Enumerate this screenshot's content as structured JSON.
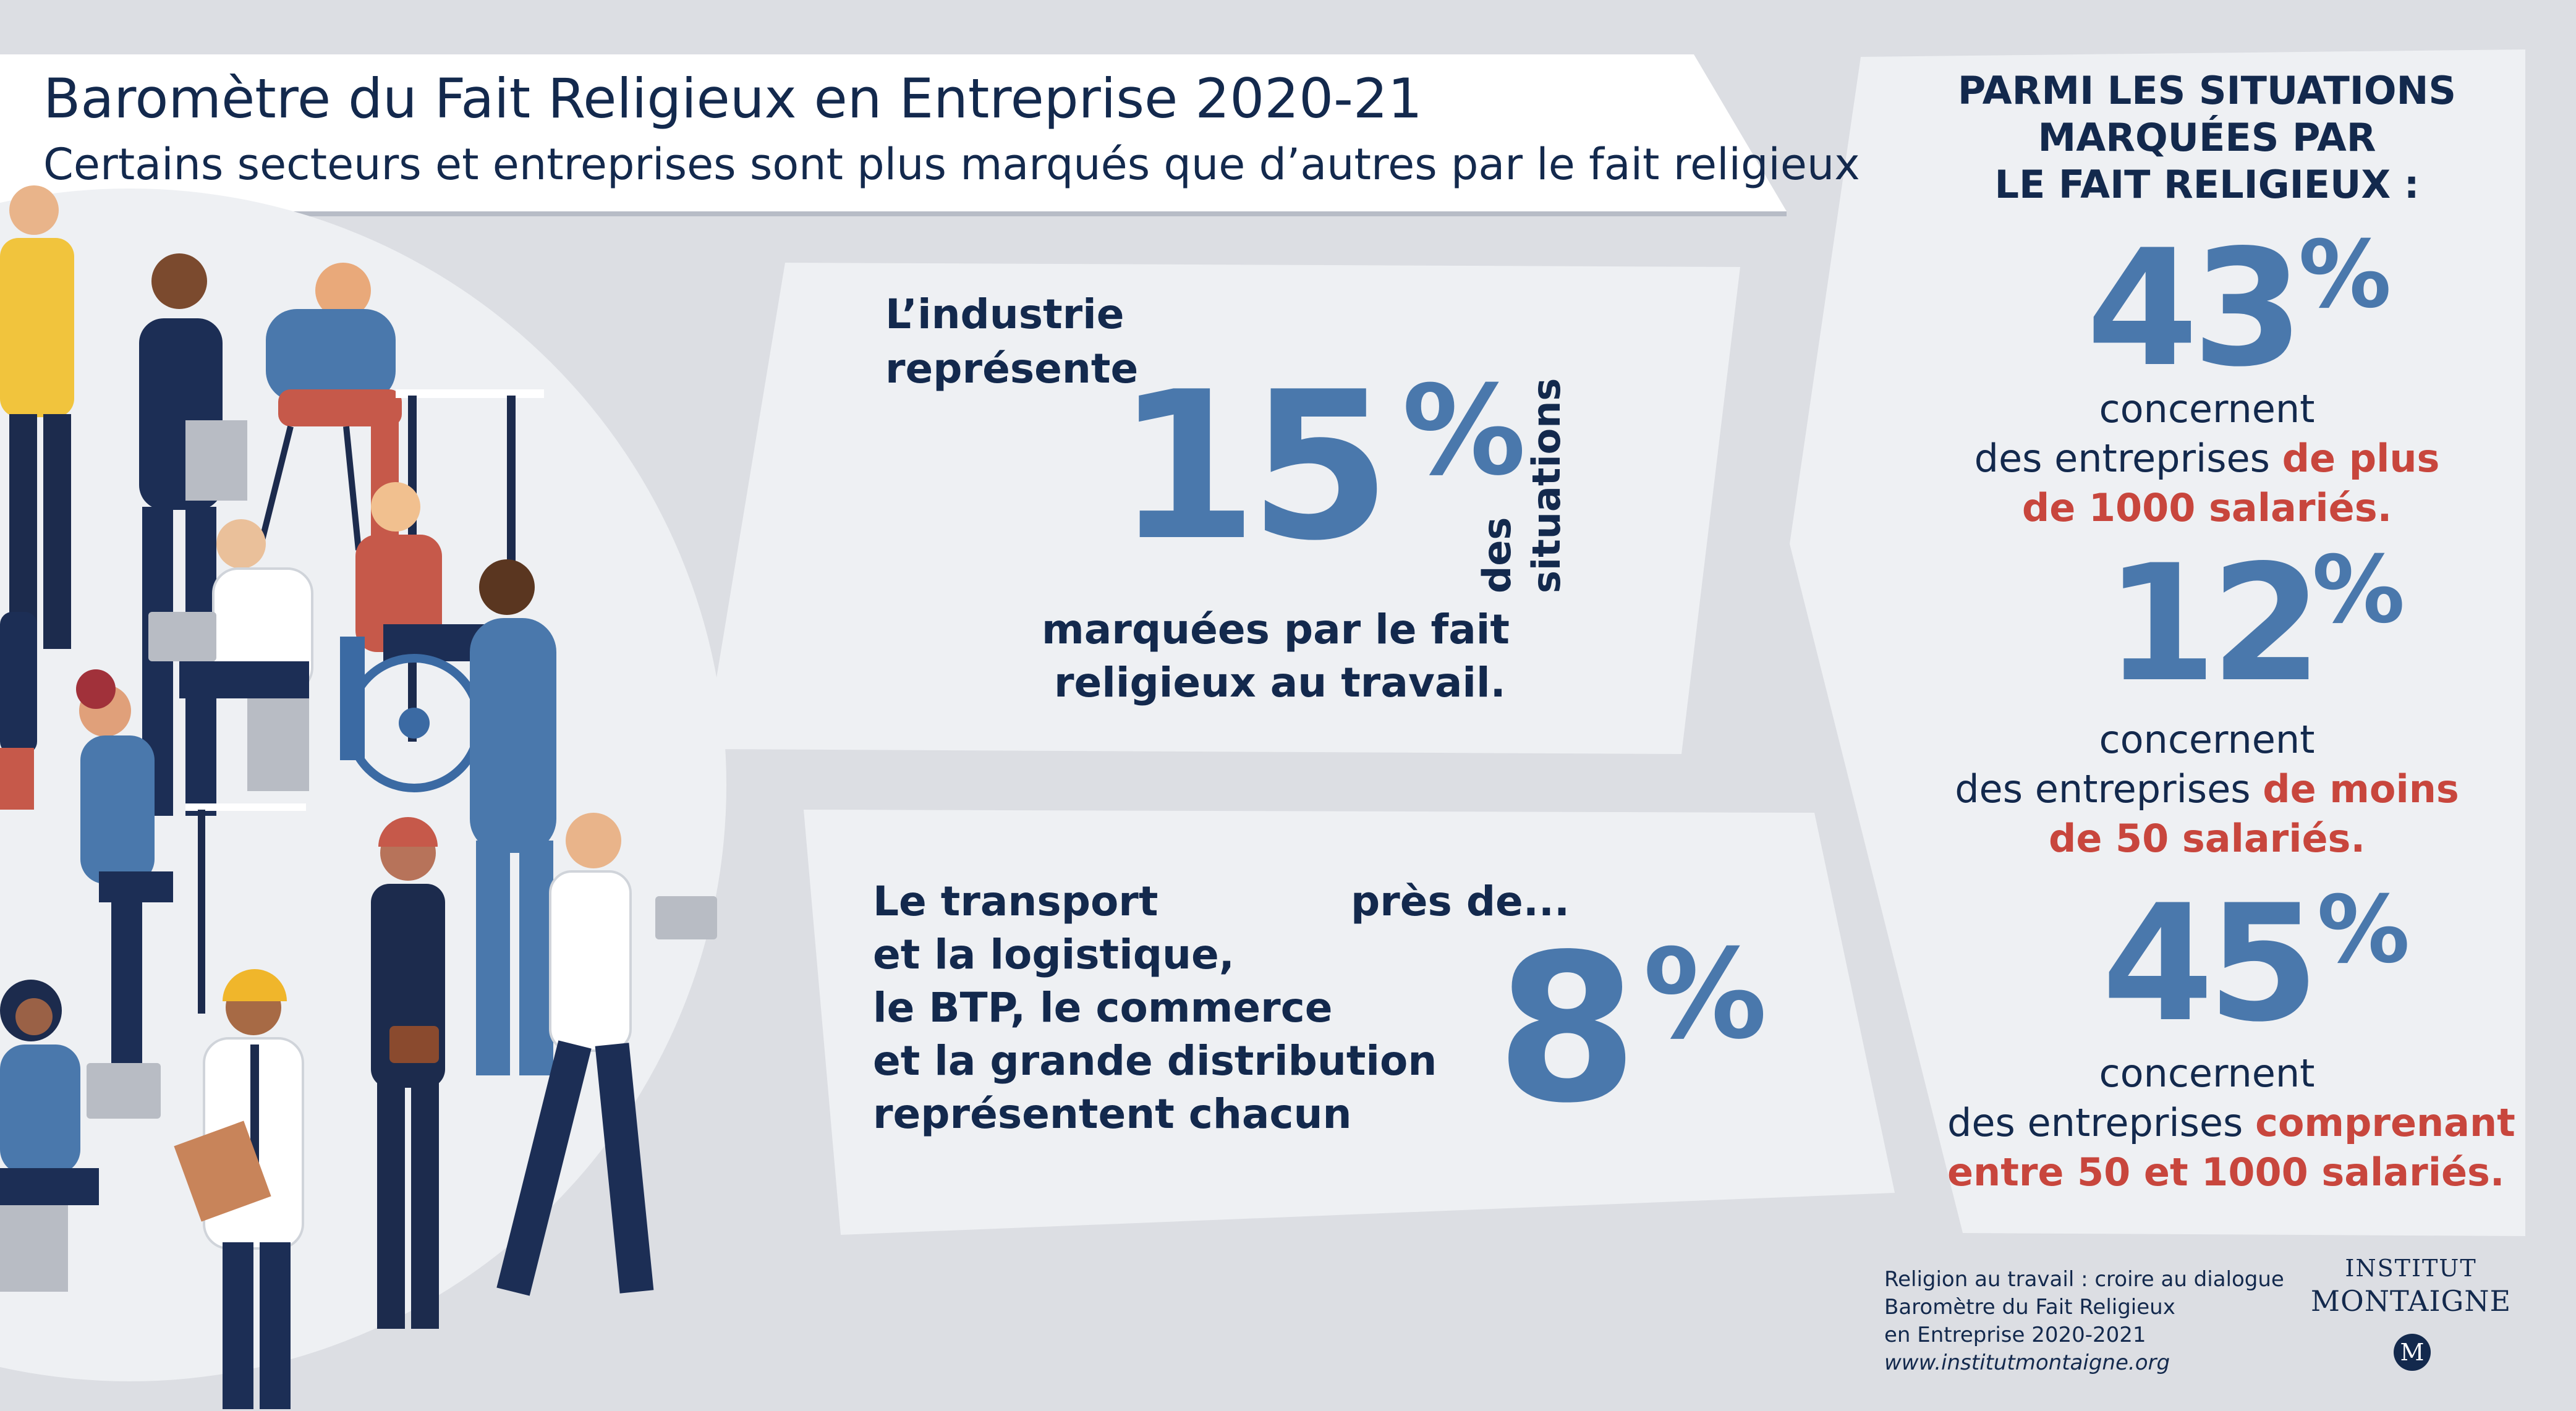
{
  "header": {
    "title": "Baromètre du Fait Religieux en Entreprise 2020-21",
    "subtitle": "Certains secteurs et entreprises sont plus marqués que d’autres par le fait religieux"
  },
  "industry_card": {
    "intro_line1": "L’industrie",
    "intro_line2": "représente",
    "value": "15",
    "percent_sign": "%",
    "side_word1": "des",
    "side_word2": "situations",
    "outro_line1": "marquées par le fait",
    "outro_line2": "religieux au travail."
  },
  "sectors_card": {
    "line1": "Le transport",
    "line2": "et la logistique,",
    "line3": "le BTP, le commerce",
    "line4": "et la grande distribution",
    "line5": "représentent chacun",
    "near_label": "près de...",
    "value": "8",
    "percent_sign": "%"
  },
  "right_panel": {
    "heading_line1": "PARMI LES SITUATIONS",
    "heading_line2": "MARQUÉES PAR",
    "heading_line3": "LE FAIT RELIGIEUX :",
    "stats": [
      {
        "value": "43",
        "percent_sign": "%",
        "verb": "concernent",
        "prefix": "des entreprises ",
        "highlight_a": "de plus",
        "highlight_b": "de 1000 salariés."
      },
      {
        "value": "12",
        "percent_sign": "%",
        "verb": "concernent",
        "prefix": "des entreprises ",
        "highlight_a": "de moins",
        "highlight_b": "de 50 salariés."
      },
      {
        "value": "45",
        "percent_sign": "%",
        "verb": "concernent",
        "prefix": "des entreprises ",
        "highlight_a": "comprenant",
        "highlight_b": "entre 50 et 1000 salariés."
      }
    ]
  },
  "source": {
    "line1": "Religion au travail : croire au dialogue",
    "line2": "Baromètre du Fait Religieux",
    "line3": "en Entreprise 2020-2021",
    "url": "www.institutmontaigne.org"
  },
  "logo": {
    "line1": "INSTITUT",
    "line2": "MONTAIGNE",
    "monogram": "M"
  },
  "colors": {
    "background": "#dcdee3",
    "card": "#eef0f3",
    "navy": "#13294d",
    "accent_blue": "#4a78ac",
    "accent_red": "#c8463d"
  }
}
